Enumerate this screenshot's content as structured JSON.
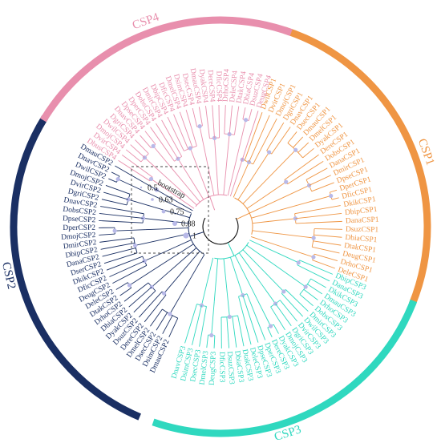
{
  "legend": {
    "title": "bootstrap",
    "levels": [
      "0.5",
      "0.63",
      "0.75",
      "0.88",
      "1"
    ],
    "dot_color": "#b8b9e8"
  },
  "clades": [
    {
      "name": "CSP1",
      "color": "#ef9543",
      "tips": [
        "DwilCSP1",
        "DvirCSP1",
        "DmojCSP1",
        "DgriCSP1",
        "DnavCSP1",
        "DsecCSP1",
        "DmauCSP1",
        "DmelCSP1",
        "DyakCSP1",
        "DereCSP1",
        "DobsCSP1",
        "DanaCSP1",
        "DmirCSP1",
        "DpseCSP1",
        "DperCSP1",
        "DficCSP1",
        "DkikCSP1",
        "DbipCSP1",
        "DanaCSP1",
        "DsuzCSP1",
        "DbiaCSP1",
        "DtakCSP1",
        "DeugCSP1",
        "DrhoCSP1",
        "DeleCSP1"
      ]
    },
    {
      "name": "CSP3",
      "color": "#2fd8bf",
      "tips": [
        "DbipCSP3",
        "DanaCSP3",
        "DkikCSP3",
        "DmauCSP3",
        "DrhoCSP3",
        "DobsCSP3",
        "DmirCSP3",
        "DwilCSP3",
        "DvirCSP3",
        "DgriCSP3",
        "DmojCSP3",
        "DyakCSP3",
        "DereCSP3",
        "DperCSP3",
        "DpseCSP3",
        "DeleCSP3",
        "DtakCSP3",
        "DbiaCSP3",
        "DsuzCSP3",
        "DficCSP3",
        "DeugCSP3",
        "DmelCSP3",
        "DsecCSP3",
        "DsimCSP3",
        "DnavCSP3"
      ]
    },
    {
      "name": "CSP2",
      "color": "#1a2f63",
      "tips": [
        "DmauCSP2",
        "DsimCSP2",
        "DsecCSP2",
        "DmelCSP2",
        "DereCSP2",
        "DsuzCSP2",
        "DyakCSP2",
        "DbiaCSP2",
        "DrhoCSP2",
        "DtakCSP2",
        "DeleCSP2",
        "DeugCSP2",
        "DficCSP2",
        "DkikCSP2",
        "DserCSP2",
        "DanaCSP2",
        "DbipCSP2",
        "DmirCSP2",
        "DmojCSP2",
        "DperCSP2",
        "DpseCSP2",
        "DobsCSP2",
        "DnavCSP2",
        "DgriCSP2",
        "DvirCSP2",
        "DmojCSP2",
        "DwilCSP2",
        "DnavCSP2",
        "DmauCSP2"
      ]
    },
    {
      "name": "CSP4",
      "color": "#e88fad",
      "tips": [
        "DbusCSP4",
        "DvirCSP4",
        "DmojCSP4",
        "DwilCSP4",
        "DgriCSP4",
        "DnavCSP4",
        "DpseCSP4",
        "DperCSP4",
        "DobsCSP4",
        "DmirCSP4",
        "DbipCSP4",
        "DficCSP4",
        "DmelCSP4",
        "DsimCSP4",
        "DsecCSP4",
        "DmauCSP4",
        "DyakCSP4",
        "DereCSP4",
        "DficCSP4",
        "DrhoCSP4",
        "DeleCSP4",
        "DtakCSP4",
        "DbiaCSP4",
        "DsuzCSP4",
        "DeugCSP4"
      ]
    }
  ]
}
